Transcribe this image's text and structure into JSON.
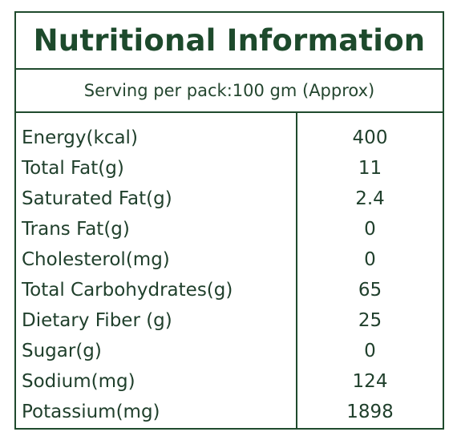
{
  "title": "Nutritional Information",
  "serving": "Serving per pack:100 gm (Approx)",
  "nutrients": [
    {
      "label": "Energy(kcal)",
      "value": "400"
    },
    {
      "label": "Total Fat(g)",
      "value": "11"
    },
    {
      "label": "Saturated Fat(g)",
      "value": "2.4"
    },
    {
      "label": "Trans Fat(g)",
      "value": "0"
    },
    {
      "label": "Cholesterol(mg)",
      "value": "0"
    },
    {
      "label": "Total Carbohydrates(g)",
      "value": "65"
    },
    {
      "label": "Dietary Fiber (g)",
      "value": "25"
    },
    {
      "label": "Sugar(g)",
      "value": "0"
    },
    {
      "label": "Sodium(mg)",
      "value": "124"
    },
    {
      "label": "Potassium(mg)",
      "value": "1898"
    }
  ]
}
